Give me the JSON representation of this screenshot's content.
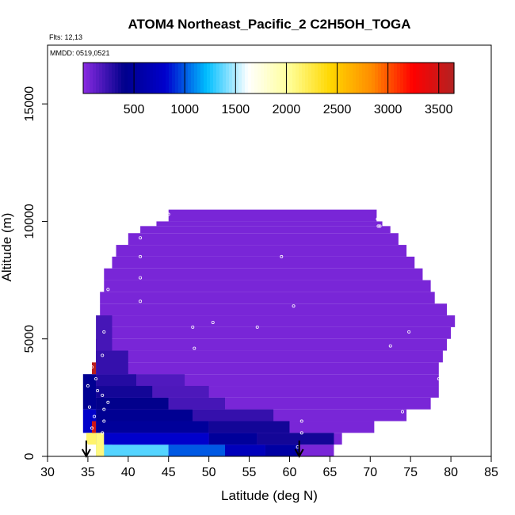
{
  "chart_data": {
    "type": "heatmap",
    "title": "ATOM4 Northeast_Pacific_2 C2H5OH_TOGA",
    "annotations": [
      "Flts: 12,13",
      "MMDD: 0519,0521"
    ],
    "xlabel": "Latitude (deg N)",
    "ylabel": "Altitude (m)",
    "xlim": [
      30,
      85
    ],
    "ylim": [
      0,
      17500
    ],
    "x_ticks": [
      "30",
      "35",
      "40",
      "45",
      "50",
      "55",
      "60",
      "65",
      "70",
      "75",
      "80",
      "85"
    ],
    "y_ticks": [
      "0",
      "5000",
      "10000",
      "15000"
    ],
    "colorbar": {
      "range": [
        0,
        3650
      ],
      "ticks": [
        "500",
        "1000",
        "1500",
        "2000",
        "2500",
        "3000",
        "3500"
      ],
      "colors": [
        "#8A2BE2",
        "#00008B",
        "#0000CD",
        "#00BFFF",
        "#FFFFFF",
        "#FFFF99",
        "#FFD700",
        "#FF8C00",
        "#FF0000",
        "#B22222"
      ]
    },
    "marker_latitudes": [
      34.8,
      61.2
    ],
    "background_value": 50,
    "colored_regions": [
      {
        "lat": [
          36.0,
          45.0
        ],
        "alt": [
          0,
          500
        ],
        "value": 1350
      },
      {
        "lat": [
          45.0,
          52.0
        ],
        "alt": [
          0,
          500
        ],
        "value": 1000
      },
      {
        "lat": [
          52.0,
          57.0
        ],
        "alt": [
          0,
          500
        ],
        "value": 700
      },
      {
        "lat": [
          57.0,
          61.2
        ],
        "alt": [
          0,
          500
        ],
        "value": 550
      },
      {
        "lat": [
          36.0,
          50.0
        ],
        "alt": [
          500,
          1000
        ],
        "value": 800
      },
      {
        "lat": [
          50.0,
          56.0
        ],
        "alt": [
          500,
          1000
        ],
        "value": 500
      },
      {
        "lat": [
          56.0,
          65.5
        ],
        "alt": [
          500,
          1000
        ],
        "value": 350
      },
      {
        "lat": [
          36.0,
          50.0
        ],
        "alt": [
          1000,
          1500
        ],
        "value": 500
      },
      {
        "lat": [
          50.0,
          60.0
        ],
        "alt": [
          1000,
          1500
        ],
        "value": 350
      },
      {
        "lat": [
          36.0,
          48.0
        ],
        "alt": [
          1500,
          2000
        ],
        "value": 450
      },
      {
        "lat": [
          48.0,
          58.0
        ],
        "alt": [
          1500,
          2000
        ],
        "value": 250
      },
      {
        "lat": [
          36.0,
          45.0
        ],
        "alt": [
          2000,
          2500
        ],
        "value": 400
      },
      {
        "lat": [
          45.0,
          52.0
        ],
        "alt": [
          2000,
          2500
        ],
        "value": 200
      },
      {
        "lat": [
          36.0,
          43.0
        ],
        "alt": [
          2500,
          3000
        ],
        "value": 350
      },
      {
        "lat": [
          43.0,
          50.0
        ],
        "alt": [
          2500,
          3000
        ],
        "value": 180
      },
      {
        "lat": [
          36.0,
          41.0
        ],
        "alt": [
          3000,
          3500
        ],
        "value": 300
      },
      {
        "lat": [
          41.0,
          47.0
        ],
        "alt": [
          3000,
          3500
        ],
        "value": 170
      },
      {
        "lat": [
          36.0,
          40.0
        ],
        "alt": [
          3500,
          4500
        ],
        "value": 250
      },
      {
        "lat": [
          36.0,
          38.0
        ],
        "alt": [
          4500,
          6000
        ],
        "value": 200
      },
      {
        "lat": [
          34.4,
          36.0
        ],
        "alt": [
          2000,
          3500
        ],
        "value": 450
      },
      {
        "lat": [
          34.4,
          36.0
        ],
        "alt": [
          1000,
          2000
        ],
        "value": 800
      },
      {
        "lat": [
          34.8,
          36.0
        ],
        "alt": [
          500,
          1000
        ],
        "value": 2150
      },
      {
        "lat": [
          35.5,
          36.0
        ],
        "alt": [
          1000,
          1500
        ],
        "value": 3500
      },
      {
        "lat": [
          35.5,
          36.0
        ],
        "alt": [
          3500,
          4000
        ],
        "value": 3600
      },
      {
        "lat": [
          36.0,
          37.0
        ],
        "alt": [
          0,
          1000
        ],
        "value": 2100
      }
    ],
    "observation_points": [
      {
        "lat": 45.0,
        "alt": 10300
      },
      {
        "lat": 41.5,
        "alt": 9300
      },
      {
        "lat": 37.5,
        "alt": 8100
      },
      {
        "lat": 41.5,
        "alt": 8500
      },
      {
        "lat": 41.5,
        "alt": 7600
      },
      {
        "lat": 37.5,
        "alt": 7100
      },
      {
        "lat": 41.5,
        "alt": 6600
      },
      {
        "lat": 59.0,
        "alt": 8500
      },
      {
        "lat": 60.5,
        "alt": 6400
      },
      {
        "lat": 70.9,
        "alt": 10100
      },
      {
        "lat": 71.2,
        "alt": 9800
      },
      {
        "lat": 71.0,
        "alt": 9800
      },
      {
        "lat": 80.2,
        "alt": 6200
      },
      {
        "lat": 50.5,
        "alt": 5700
      },
      {
        "lat": 48.0,
        "alt": 5500
      },
      {
        "lat": 56.0,
        "alt": 5500
      },
      {
        "lat": 74.8,
        "alt": 5300
      },
      {
        "lat": 72.5,
        "alt": 4700
      },
      {
        "lat": 48.2,
        "alt": 4600
      },
      {
        "lat": 37.0,
        "alt": 5300
      },
      {
        "lat": 36.8,
        "alt": 4300
      },
      {
        "lat": 35.5,
        "alt": 3800
      },
      {
        "lat": 36.0,
        "alt": 3300
      },
      {
        "lat": 35.0,
        "alt": 3000
      },
      {
        "lat": 36.2,
        "alt": 2800
      },
      {
        "lat": 36.8,
        "alt": 2600
      },
      {
        "lat": 37.5,
        "alt": 2300
      },
      {
        "lat": 37.0,
        "alt": 2000
      },
      {
        "lat": 35.2,
        "alt": 2100
      },
      {
        "lat": 35.8,
        "alt": 1700
      },
      {
        "lat": 37.0,
        "alt": 1500
      },
      {
        "lat": 35.5,
        "alt": 1200
      },
      {
        "lat": 36.8,
        "alt": 1000
      },
      {
        "lat": 78.5,
        "alt": 3300
      },
      {
        "lat": 74.0,
        "alt": 1900
      },
      {
        "lat": 61.5,
        "alt": 1500
      },
      {
        "lat": 61.5,
        "alt": 1000
      },
      {
        "lat": 61.0,
        "alt": 400
      },
      {
        "lat": 34.8,
        "alt": 500
      }
    ]
  }
}
